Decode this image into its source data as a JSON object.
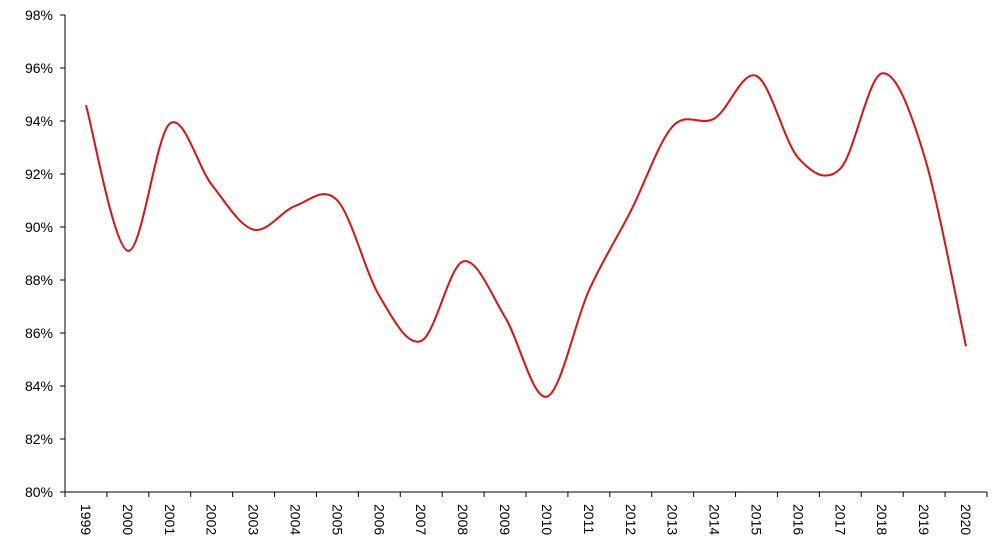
{
  "chart_data": {
    "type": "line",
    "categories": [
      "1999",
      "2000",
      "2001",
      "2002",
      "2003",
      "2004",
      "2005",
      "2006",
      "2007",
      "2008",
      "2009",
      "2010",
      "2011",
      "2012",
      "2013",
      "2014",
      "2015",
      "2016",
      "2017",
      "2018",
      "2019",
      "2020"
    ],
    "series": [
      {
        "color": "#e01010",
        "values": [
          94.6,
          89.1,
          93.9,
          91.6,
          89.9,
          90.8,
          91.0,
          87.4,
          85.7,
          88.7,
          86.6,
          83.6,
          87.6,
          90.6,
          93.8,
          94.1,
          95.7,
          92.6,
          92.2,
          95.8,
          92.7,
          85.5
        ]
      }
    ],
    "ylim": [
      80,
      98
    ],
    "yticks": [
      {
        "value": 80,
        "label": "80%"
      },
      {
        "value": 82,
        "label": "82%"
      },
      {
        "value": 84,
        "label": "84%"
      },
      {
        "value": 86,
        "label": "86%"
      },
      {
        "value": 88,
        "label": "88%"
      },
      {
        "value": 90,
        "label": "90%"
      },
      {
        "value": 92,
        "label": "92%"
      },
      {
        "value": 94,
        "label": "94%"
      },
      {
        "value": 96,
        "label": "96%"
      },
      {
        "value": 98,
        "label": "98%"
      }
    ],
    "smooth": true
  }
}
